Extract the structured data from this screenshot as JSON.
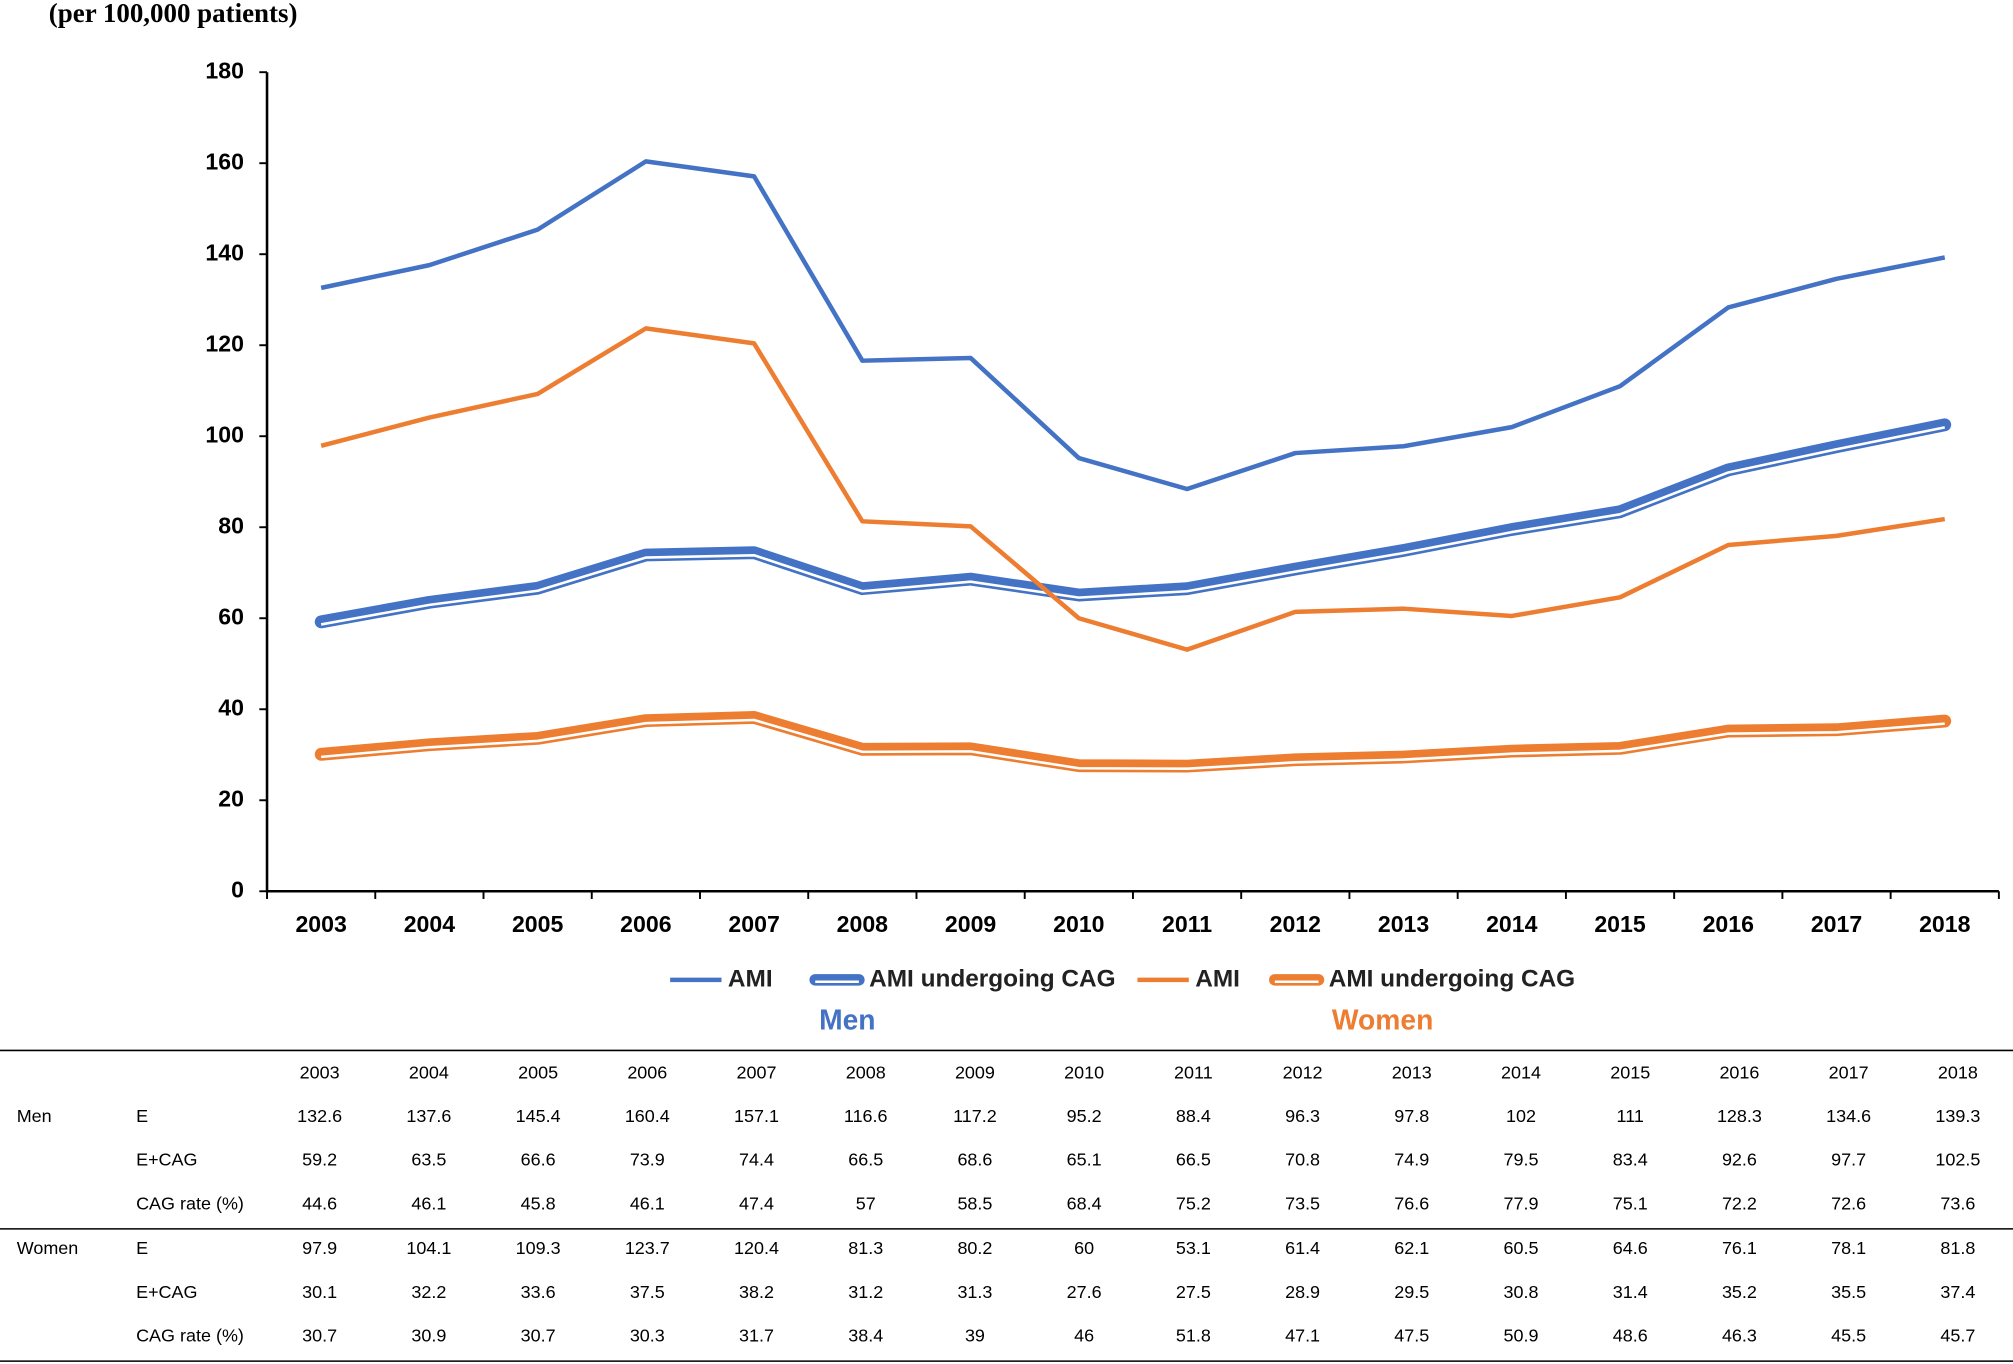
{
  "chart_data": {
    "type": "line",
    "y_label": "(per 100,000 patients)",
    "categories": [
      "2003",
      "2004",
      "2005",
      "2006",
      "2007",
      "2008",
      "2009",
      "2010",
      "2011",
      "2012",
      "2013",
      "2014",
      "2015",
      "2016",
      "2017",
      "2018"
    ],
    "series": [
      {
        "name": "AMI",
        "color": "#4472c4",
        "style": "single",
        "values": [
          132.6,
          137.6,
          145.4,
          160.4,
          157.1,
          116.6,
          117.2,
          95.2,
          88.4,
          96.3,
          97.8,
          102,
          111,
          128.3,
          134.6,
          139.3
        ]
      },
      {
        "name": "AMI undergoing CAG",
        "color": "#4472c4",
        "style": "double",
        "values": [
          59.2,
          63.5,
          66.6,
          73.9,
          74.4,
          66.5,
          68.6,
          65.1,
          66.5,
          70.8,
          74.9,
          79.5,
          83.4,
          92.6,
          97.7,
          102.5
        ]
      },
      {
        "name": "AMI",
        "color": "#ed7d31",
        "style": "single",
        "values": [
          97.9,
          104.1,
          109.3,
          123.7,
          120.4,
          81.3,
          80.2,
          60,
          53.1,
          61.4,
          62.1,
          60.5,
          64.6,
          76.1,
          78.1,
          81.8
        ]
      },
      {
        "name": "AMI undergoing CAG",
        "color": "#ed7d31",
        "style": "double",
        "values": [
          30.1,
          32.2,
          33.6,
          37.5,
          38.2,
          31.2,
          31.3,
          27.6,
          27.5,
          28.9,
          29.5,
          30.8,
          31.4,
          35.2,
          35.5,
          37.4
        ]
      }
    ],
    "legend_groups": [
      {
        "label": "Men",
        "color": "#4472c4"
      },
      {
        "label": "Women",
        "color": "#ed7d31"
      }
    ],
    "ylim": [
      0,
      180
    ],
    "yticks": [
      0,
      20,
      40,
      60,
      80,
      100,
      120,
      140,
      160,
      180
    ],
    "grid": false,
    "legend": "bottom"
  },
  "table": {
    "header": [
      "2003",
      "2004",
      "2005",
      "2006",
      "2007",
      "2008",
      "2009",
      "2010",
      "2011",
      "2012",
      "2013",
      "2014",
      "2015",
      "2016",
      "2017",
      "2018"
    ],
    "groups": [
      {
        "name": "Men",
        "rows": [
          {
            "label": "E",
            "values": [
              132.6,
              137.6,
              145.4,
              160.4,
              157.1,
              116.6,
              117.2,
              95.2,
              88.4,
              96.3,
              97.8,
              102,
              111,
              128.3,
              134.6,
              139.3
            ]
          },
          {
            "label": "E+CAG",
            "values": [
              59.2,
              63.5,
              66.6,
              73.9,
              74.4,
              66.5,
              68.6,
              65.1,
              66.5,
              70.8,
              74.9,
              79.5,
              83.4,
              92.6,
              97.7,
              102.5
            ]
          },
          {
            "label": "CAG rate (%)",
            "values": [
              44.6,
              46.1,
              45.8,
              46.1,
              47.4,
              57,
              58.5,
              68.4,
              75.2,
              73.5,
              76.6,
              77.9,
              75.1,
              72.2,
              72.6,
              73.6
            ]
          }
        ]
      },
      {
        "name": "Women",
        "rows": [
          {
            "label": "E",
            "values": [
              97.9,
              104.1,
              109.3,
              123.7,
              120.4,
              81.3,
              80.2,
              60,
              53.1,
              61.4,
              62.1,
              60.5,
              64.6,
              76.1,
              78.1,
              81.8
            ]
          },
          {
            "label": "E+CAG",
            "values": [
              30.1,
              32.2,
              33.6,
              37.5,
              38.2,
              31.2,
              31.3,
              27.6,
              27.5,
              28.9,
              29.5,
              30.8,
              31.4,
              35.2,
              35.5,
              37.4
            ]
          },
          {
            "label": "CAG rate (%)",
            "values": [
              30.7,
              30.9,
              30.7,
              30.3,
              31.7,
              38.4,
              39,
              46,
              51.8,
              47.1,
              47.5,
              50.9,
              48.6,
              46.3,
              45.5,
              45.7
            ]
          }
        ]
      }
    ]
  }
}
